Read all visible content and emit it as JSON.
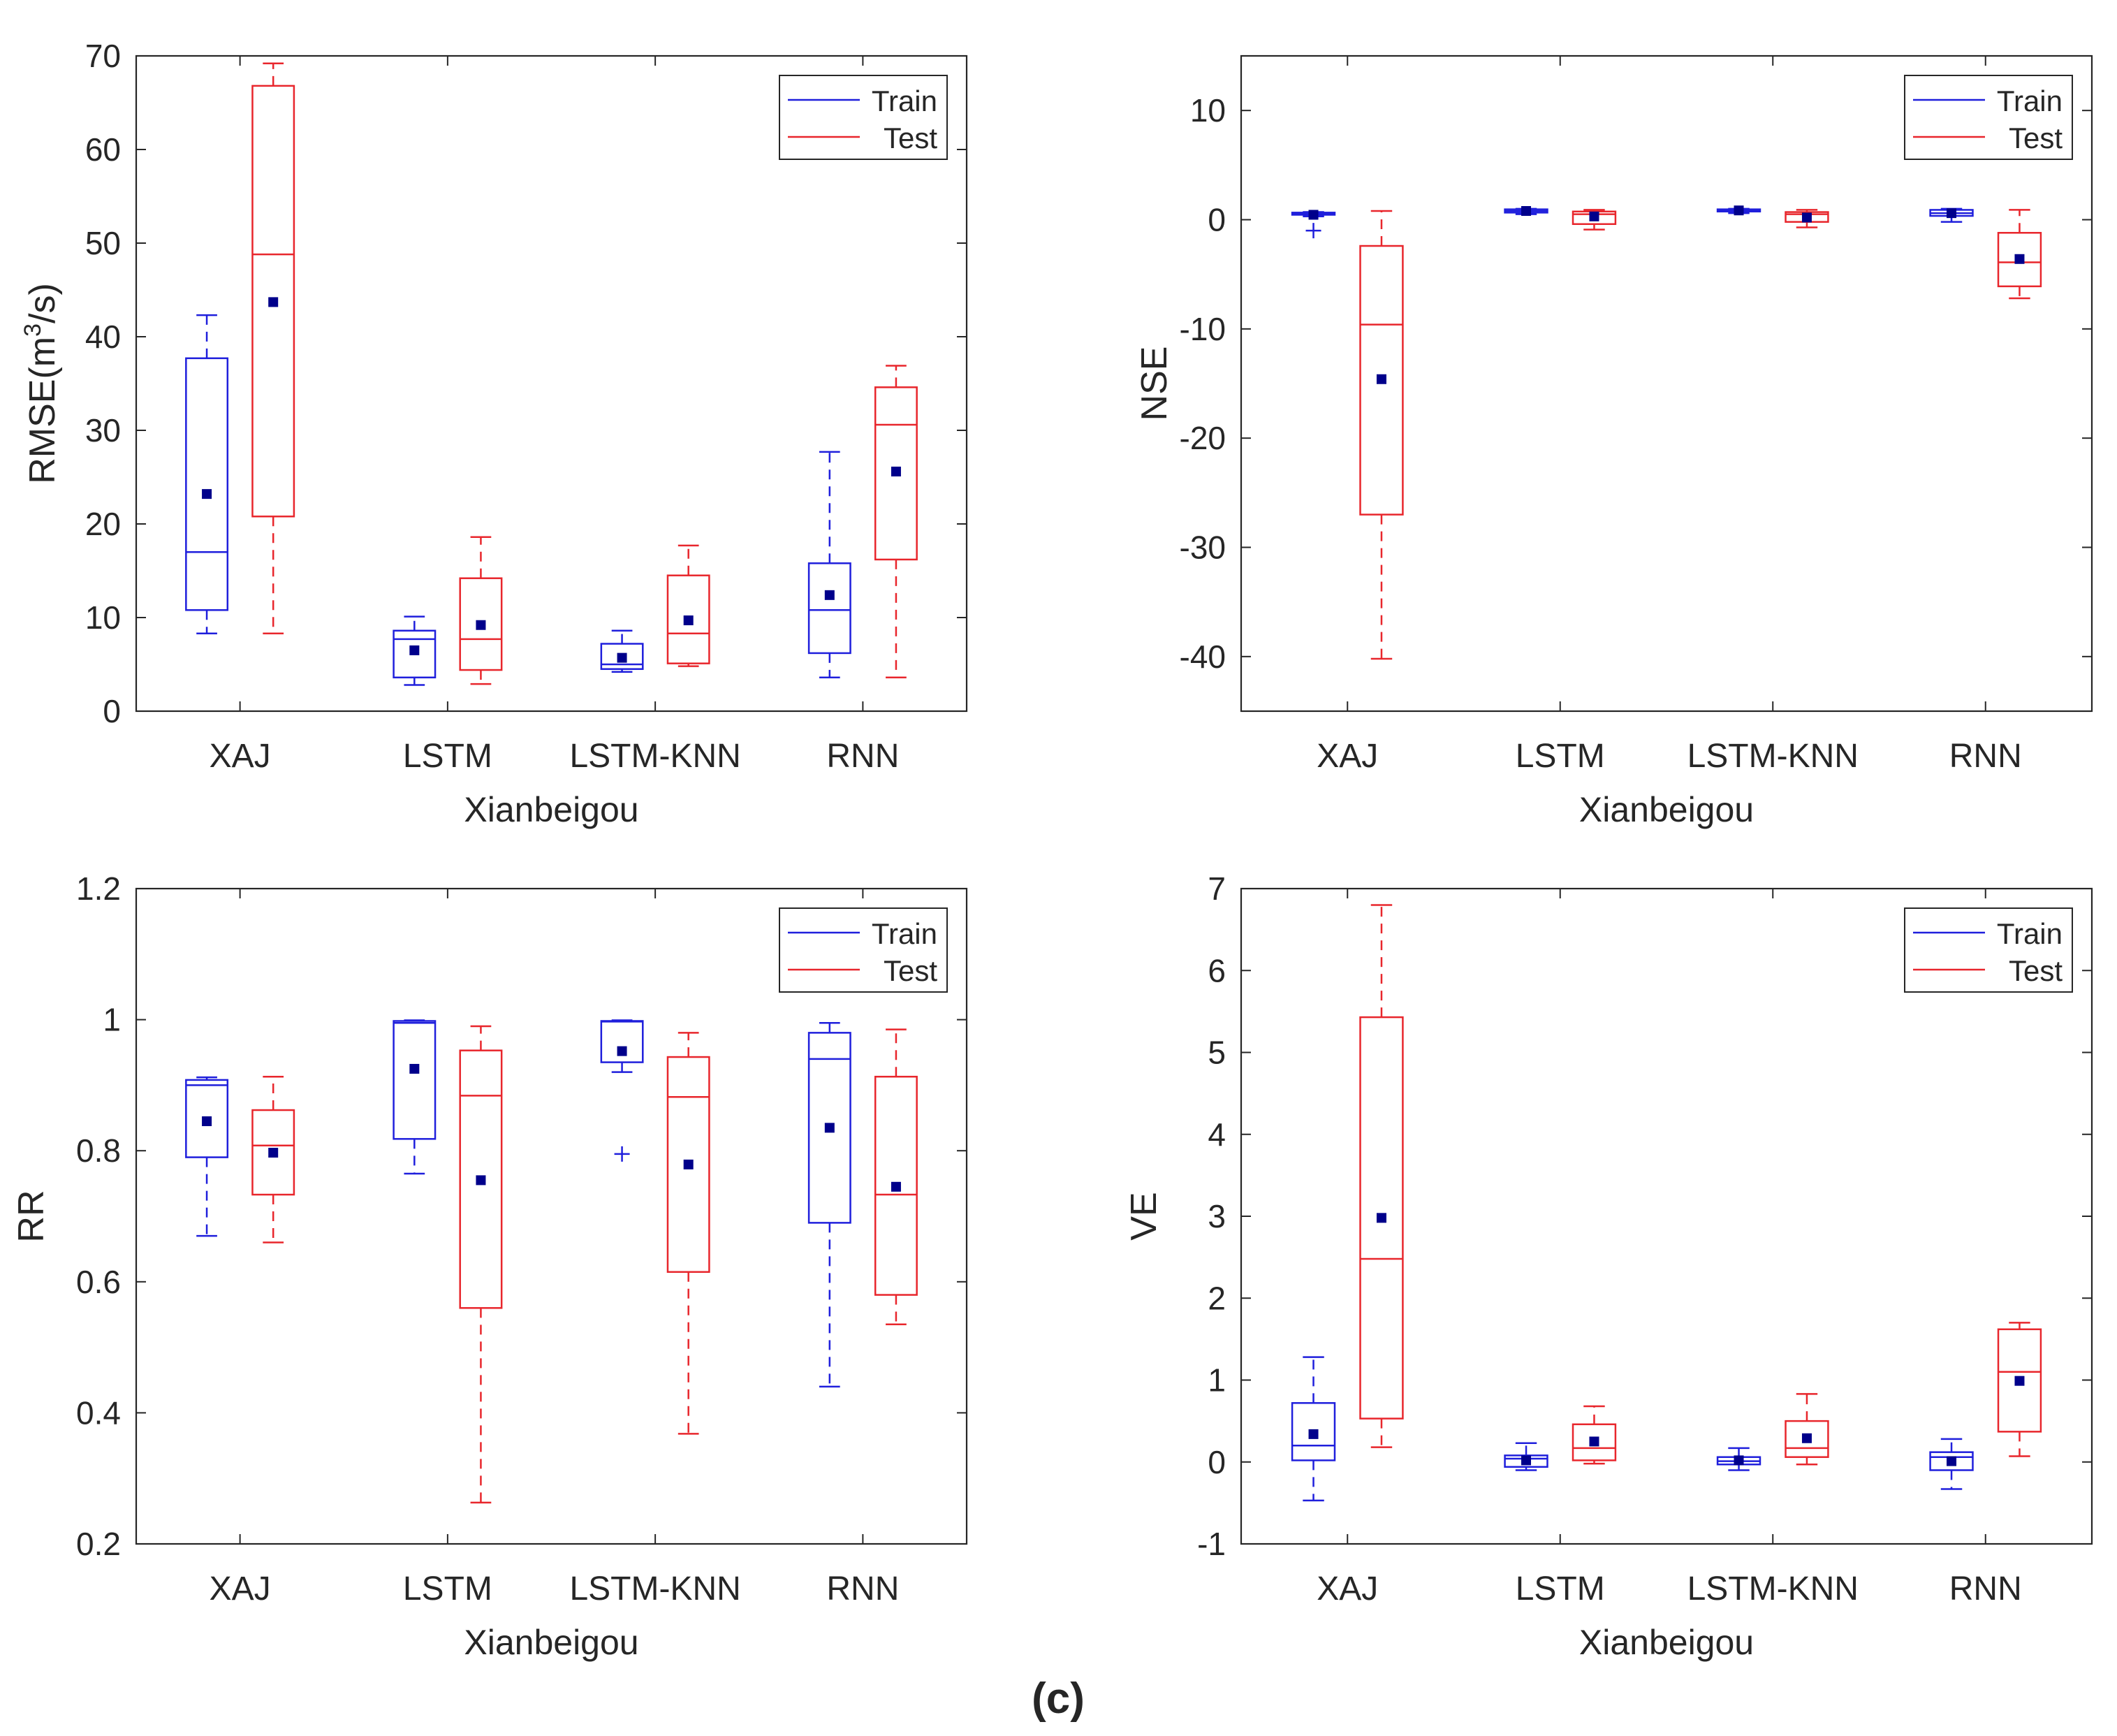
{
  "figure_label": "(c)",
  "colors": {
    "train": "#1f1fdc",
    "test": "#e8262c",
    "mean": "#00008b",
    "axis": "#262626"
  },
  "legend": {
    "train": "Train",
    "test": "Test"
  },
  "chart_data": [
    {
      "type": "box",
      "ylabel": "RMSE(m³/s)",
      "ylabel_parts": [
        "RMSE(m",
        "3",
        "/s)"
      ],
      "xlabel": "Xianbeigou",
      "categories": [
        "XAJ",
        "LSTM",
        "LSTM-KNN",
        "RNN"
      ],
      "ylim": [
        0,
        70
      ],
      "yticks": [
        0,
        10,
        20,
        30,
        40,
        50,
        60,
        70
      ],
      "legend_position": "top-right",
      "series": [
        {
          "name": "Train",
          "boxes": [
            {
              "whislo": 8.3,
              "q1": 10.8,
              "med": 17,
              "q3": 37.7,
              "whishi": 42.3,
              "mean": 23.2
            },
            {
              "whislo": 2.8,
              "q1": 3.6,
              "med": 7.7,
              "q3": 8.6,
              "whishi": 10.1,
              "mean": 6.5
            },
            {
              "whislo": 4.2,
              "q1": 4.5,
              "med": 5,
              "q3": 7.2,
              "whishi": 8.6,
              "mean": 5.7
            },
            {
              "whislo": 3.6,
              "q1": 6.2,
              "med": 10.8,
              "q3": 15.8,
              "whishi": 27.7,
              "mean": 12.4
            }
          ]
        },
        {
          "name": "Test",
          "boxes": [
            {
              "whislo": 8.3,
              "q1": 20.8,
              "med": 48.8,
              "q3": 66.8,
              "whishi": 69.2,
              "mean": 43.7
            },
            {
              "whislo": 2.9,
              "q1": 4.4,
              "med": 7.7,
              "q3": 14.2,
              "whishi": 18.6,
              "mean": 9.2
            },
            {
              "whislo": 4.8,
              "q1": 5.1,
              "med": 8.3,
              "q3": 14.5,
              "whishi": 17.7,
              "mean": 9.7
            },
            {
              "whislo": 3.6,
              "q1": 16.2,
              "med": 30.6,
              "q3": 34.6,
              "whishi": 36.9,
              "mean": 25.6
            }
          ]
        }
      ]
    },
    {
      "type": "box",
      "ylabel": "NSE",
      "xlabel": "Xianbeigou",
      "categories": [
        "XAJ",
        "LSTM",
        "LSTM-KNN",
        "RNN"
      ],
      "ylim": [
        -45,
        15
      ],
      "yticks": [
        -40,
        -30,
        -20,
        -10,
        0,
        10
      ],
      "legend_position": "top-right",
      "series": [
        {
          "name": "Train",
          "boxes": [
            {
              "whislo": 0.3,
              "q1": 0.45,
              "med": 0.55,
              "q3": 0.65,
              "whishi": 0.7,
              "mean": 0.45,
              "outliers": [
                -1
              ]
            },
            {
              "whislo": 0.5,
              "q1": 0.65,
              "med": 0.8,
              "q3": 0.95,
              "whishi": 1,
              "mean": 0.8
            },
            {
              "whislo": 0.6,
              "q1": 0.75,
              "med": 0.85,
              "q3": 0.95,
              "whishi": 1,
              "mean": 0.85
            },
            {
              "whislo": -0.2,
              "q1": 0.35,
              "med": 0.6,
              "q3": 0.9,
              "whishi": 1,
              "mean": 0.6
            }
          ]
        },
        {
          "name": "Test",
          "boxes": [
            {
              "whislo": -40.2,
              "q1": -27,
              "med": -9.6,
              "q3": -2.4,
              "whishi": 0.8,
              "mean": -14.6
            },
            {
              "whislo": -0.9,
              "q1": -0.4,
              "med": 0.5,
              "q3": 0.75,
              "whishi": 0.9,
              "mean": 0.3
            },
            {
              "whislo": -0.7,
              "q1": -0.2,
              "med": 0.5,
              "q3": 0.7,
              "whishi": 0.9,
              "mean": 0.2
            },
            {
              "whislo": -7.2,
              "q1": -6.1,
              "med": -3.9,
              "q3": -1.2,
              "whishi": 0.9,
              "mean": -3.6
            }
          ]
        }
      ]
    },
    {
      "type": "box",
      "ylabel": "RR",
      "xlabel": "Xianbeigou",
      "categories": [
        "XAJ",
        "LSTM",
        "LSTM-KNN",
        "RNN"
      ],
      "ylim": [
        0.2,
        1.2
      ],
      "yticks": [
        0.2,
        0.4,
        0.6,
        0.8,
        1,
        1.2
      ],
      "legend_position": "top-right",
      "series": [
        {
          "name": "Train",
          "boxes": [
            {
              "whislo": 0.67,
              "q1": 0.79,
              "med": 0.9,
              "q3": 0.908,
              "whishi": 0.912,
              "mean": 0.845
            },
            {
              "whislo": 0.765,
              "q1": 0.818,
              "med": 0.995,
              "q3": 0.998,
              "whishi": 0.999,
              "mean": 0.925
            },
            {
              "whislo": 0.92,
              "q1": 0.935,
              "med": 0.997,
              "q3": 0.998,
              "whishi": 0.999,
              "mean": 0.952,
              "outliers": [
                0.795
              ]
            },
            {
              "whislo": 0.44,
              "q1": 0.69,
              "med": 0.94,
              "q3": 0.98,
              "whishi": 0.995,
              "mean": 0.835
            }
          ]
        },
        {
          "name": "Test",
          "boxes": [
            {
              "whislo": 0.66,
              "q1": 0.733,
              "med": 0.808,
              "q3": 0.862,
              "whishi": 0.913,
              "mean": 0.797
            },
            {
              "whislo": 0.263,
              "q1": 0.56,
              "med": 0.884,
              "q3": 0.953,
              "whishi": 0.99,
              "mean": 0.755
            },
            {
              "whislo": 0.368,
              "q1": 0.615,
              "med": 0.882,
              "q3": 0.943,
              "whishi": 0.98,
              "mean": 0.779
            },
            {
              "whislo": 0.535,
              "q1": 0.58,
              "med": 0.733,
              "q3": 0.913,
              "whishi": 0.985,
              "mean": 0.745
            }
          ]
        }
      ]
    },
    {
      "type": "box",
      "ylabel": "VE",
      "xlabel": "Xianbeigou",
      "categories": [
        "XAJ",
        "LSTM",
        "LSTM-KNN",
        "RNN"
      ],
      "ylim": [
        -1,
        7
      ],
      "yticks": [
        -1,
        0,
        1,
        2,
        3,
        4,
        5,
        6,
        7
      ],
      "legend_position": "top-right",
      "series": [
        {
          "name": "Train",
          "boxes": [
            {
              "whislo": -0.47,
              "q1": 0.02,
              "med": 0.2,
              "q3": 0.72,
              "whishi": 1.28,
              "mean": 0.34
            },
            {
              "whislo": -0.1,
              "q1": -0.06,
              "med": 0.04,
              "q3": 0.08,
              "whishi": 0.23,
              "mean": 0.02
            },
            {
              "whislo": -0.1,
              "q1": -0.03,
              "med": 0.01,
              "q3": 0.06,
              "whishi": 0.17,
              "mean": 0.02
            },
            {
              "whislo": -0.33,
              "q1": -0.1,
              "med": 0.06,
              "q3": 0.12,
              "whishi": 0.28,
              "mean": 0.01
            }
          ]
        },
        {
          "name": "Test",
          "boxes": [
            {
              "whislo": 0.18,
              "q1": 0.53,
              "med": 2.48,
              "q3": 5.43,
              "whishi": 6.8,
              "mean": 2.98
            },
            {
              "whislo": -0.02,
              "q1": 0.02,
              "med": 0.17,
              "q3": 0.46,
              "whishi": 0.68,
              "mean": 0.25
            },
            {
              "whislo": -0.03,
              "q1": 0.06,
              "med": 0.17,
              "q3": 0.5,
              "whishi": 0.83,
              "mean": 0.29
            },
            {
              "whislo": 0.07,
              "q1": 0.37,
              "med": 1.1,
              "q3": 1.62,
              "whishi": 1.7,
              "mean": 0.99
            }
          ]
        }
      ]
    }
  ]
}
